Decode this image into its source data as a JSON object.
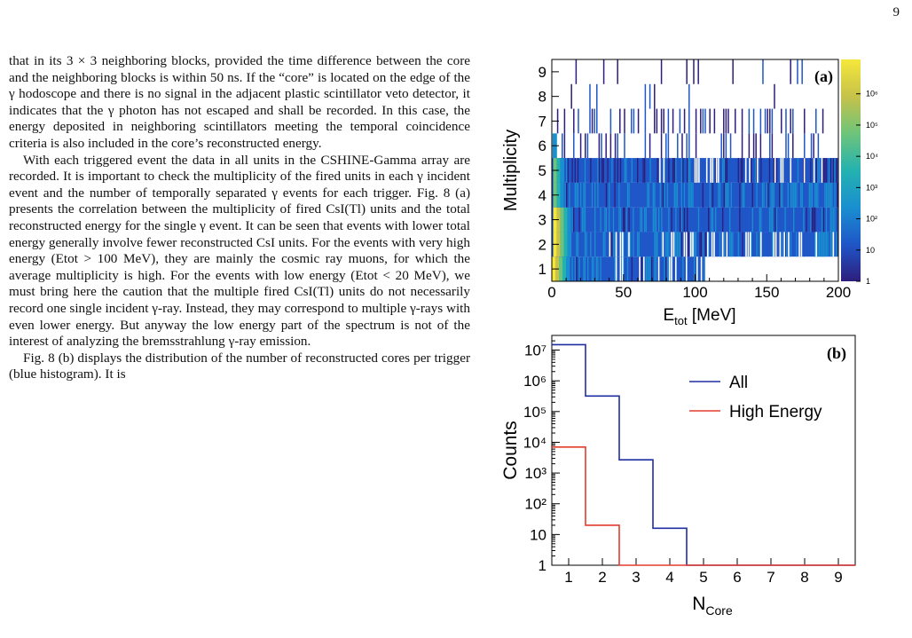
{
  "page_number": "9",
  "paragraphs": [
    "that in its 3 × 3 neighboring blocks, provided the time difference between the core and the neighboring blocks is within 50 ns. If the “core” is located on the edge of the γ hodoscope and there is no signal in the adjacent plastic scintillator veto detector, it indicates that the γ photon has not escaped and shall be recorded. In this case, the energy deposited in neighboring scintillators meeting the temporal coincidence criteria is also included in the core’s reconstructed energy.",
    "With each triggered event the data in all units in the CSHINE-Gamma array are recorded. It is important to check the multiplicity of the fired units in each γ incident event and the number of temporally separated γ events for each trigger. Fig. 8 (a) presents the correlation between the multiplicity of fired CsI(Tl) units and the total reconstructed energy for the single γ event. It can be seen that events with lower total energy generally involve fewer reconstructed CsI units. For the events with very high energy (Etot > 100 MeV), they are mainly the cosmic ray muons, for which the average multiplicity is high. For the events with low energy (Etot < 20 MeV), we must bring here the caution that the multiple fired CsI(Tl) units do not necessarily record one single incident γ-ray. Instead, they may correspond to multiple γ-rays with even lower energy. But anyway the low energy part of the spectrum is not of the interest of analyzing the bremsstrahlung γ-ray emission.",
    "Fig. 8 (b) displays the distribution of the number of reconstructed cores per trigger (blue histogram). It is"
  ],
  "chart_data": [
    {
      "type": "heatmap",
      "panel_label": "(a)",
      "xlabel": "E",
      "xlabel_sub": "tot",
      "xlabel_unit": "[MeV]",
      "ylabel": "Multiplicity",
      "xlim": [
        0,
        200
      ],
      "ylim": [
        0.5,
        9.5
      ],
      "x_ticks": [
        "0",
        "50",
        "100",
        "150",
        "200"
      ],
      "y_ticks": [
        "1",
        "2",
        "3",
        "4",
        "5",
        "6",
        "7",
        "8",
        "9"
      ],
      "z_scale": "log",
      "z_ticks": [
        "1",
        "10",
        "10²",
        "10³",
        "10⁴",
        "10⁵",
        "10⁶"
      ],
      "rows": [
        {
          "multiplicity": 1,
          "x_max": 107,
          "density": "dense"
        },
        {
          "multiplicity": 2,
          "x_max": 200,
          "density": "dense"
        },
        {
          "multiplicity": 3,
          "x_max": 200,
          "density": "dense"
        },
        {
          "multiplicity": 4,
          "x_max": 200,
          "density": "dense"
        },
        {
          "multiplicity": 5,
          "x_max": 200,
          "density": "medium"
        },
        {
          "multiplicity": 6,
          "x_max": 197,
          "density": "sparse"
        },
        {
          "multiplicity": 7,
          "x_max": 190,
          "density": "sparse"
        },
        {
          "multiplicity": 8,
          "x_max": 165,
          "density": "very sparse"
        },
        {
          "multiplicity": 9,
          "x_max": 178,
          "density": "very sparse"
        }
      ],
      "colorscale": [
        "#2d1e7c",
        "#1f56c8",
        "#1a8fd0",
        "#24b2b0",
        "#6ec47a",
        "#c6c24a",
        "#f5e73a"
      ]
    },
    {
      "type": "line",
      "style": "step",
      "panel_label": "(b)",
      "xlabel": "N",
      "xlabel_sub": "Core",
      "ylabel": "Counts",
      "xlim": [
        0.5,
        9.5
      ],
      "y_scale": "log",
      "ylim": [
        1,
        30000000
      ],
      "x_ticks": [
        "1",
        "2",
        "3",
        "4",
        "5",
        "6",
        "7",
        "8",
        "9"
      ],
      "y_ticks": [
        "1",
        "10",
        "10²",
        "10³",
        "10⁴",
        "10⁵",
        "10⁶",
        "10⁷"
      ],
      "categories": [
        1,
        2,
        3,
        4,
        5,
        6,
        7,
        8,
        9
      ],
      "series": [
        {
          "name": "All",
          "color": "#1f2ea0",
          "values": [
            15000000,
            320000,
            2700,
            16,
            1,
            1,
            1,
            1,
            1
          ]
        },
        {
          "name": "High Energy",
          "color": "#e33b2e",
          "values": [
            7000,
            20,
            1,
            1,
            1,
            1,
            1,
            1,
            1
          ]
        }
      ],
      "legend_position": "top-right"
    }
  ]
}
